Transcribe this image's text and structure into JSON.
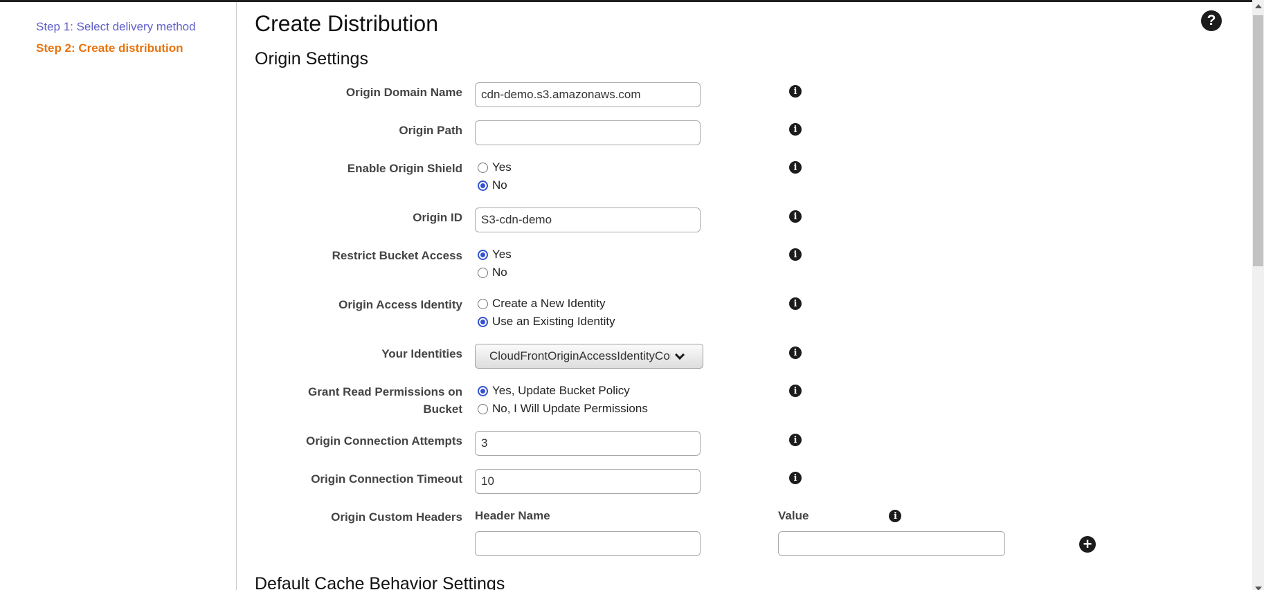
{
  "header": {
    "title": "Create Distribution"
  },
  "sidebar": {
    "steps": [
      {
        "label": "Step 1: Select delivery method"
      },
      {
        "label": "Step 2: Create distribution"
      }
    ]
  },
  "sections": [
    {
      "title": "Origin Settings"
    },
    {
      "title": "Default Cache Behavior Settings"
    }
  ],
  "icons": {
    "info": "i",
    "help": "?",
    "add": "+"
  },
  "colors": {
    "step_link_purple": "#5f5fc7",
    "step_current_orange": "#e8730e",
    "radio_selected_blue": "#3352cc",
    "icon_dark": "#1c1c1c"
  },
  "form": {
    "rows": [
      {
        "label": "Origin Domain Name",
        "type": "text",
        "value": "cdn-demo.s3.amazonaws.com"
      },
      {
        "label": "Origin Path",
        "type": "text",
        "value": ""
      },
      {
        "label": "Enable Origin Shield",
        "type": "radio",
        "options": [
          {
            "label": "Yes",
            "selected": false
          },
          {
            "label": "No",
            "selected": true
          }
        ]
      },
      {
        "label": "Origin ID",
        "type": "text",
        "value": "S3-cdn-demo"
      },
      {
        "label": "Restrict Bucket Access",
        "type": "radio",
        "options": [
          {
            "label": "Yes",
            "selected": true
          },
          {
            "label": "No",
            "selected": false
          }
        ]
      },
      {
        "label": "Origin Access Identity",
        "type": "radio",
        "options": [
          {
            "label": "Create a New Identity",
            "selected": false
          },
          {
            "label": "Use an Existing Identity",
            "selected": true
          }
        ]
      },
      {
        "label": "Your Identities",
        "type": "select",
        "value": "CloudFrontOriginAccessIdentityConfi"
      },
      {
        "label": "Grant Read Permissions on Bucket",
        "type": "radio",
        "options": [
          {
            "label": "Yes, Update Bucket Policy",
            "selected": true
          },
          {
            "label": "No, I Will Update Permissions",
            "selected": false
          }
        ]
      },
      {
        "label": "Origin Connection Attempts",
        "type": "text",
        "value": "3"
      },
      {
        "label": "Origin Connection Timeout",
        "type": "text",
        "value": "10"
      },
      {
        "label": "Origin Custom Headers",
        "type": "custom_headers",
        "header_name_label": "Header Name",
        "header_name_value": "",
        "value_label": "Value",
        "value_value": ""
      }
    ]
  }
}
